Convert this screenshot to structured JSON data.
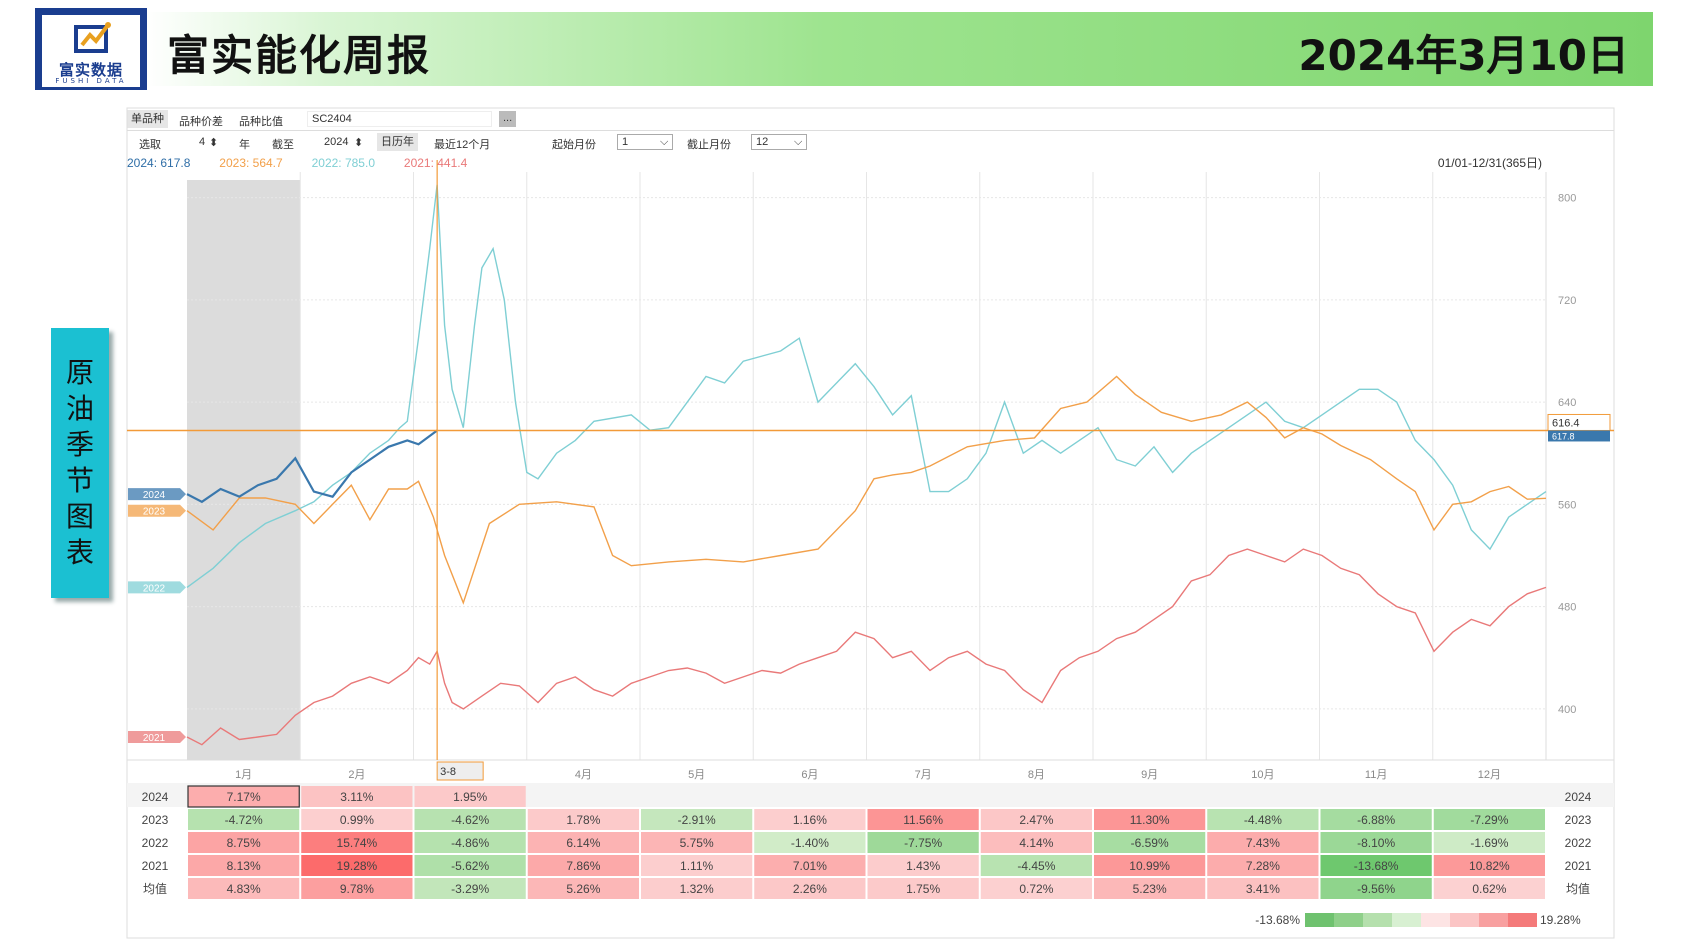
{
  "header": {
    "title": "富实能化周报",
    "date": "2024年3月10日",
    "logo_text": "富实数据",
    "logo_sub": "FUSHI DATA"
  },
  "side_label": "原油季节图表",
  "toolbar": {
    "tabs": [
      "单品种",
      "品种价差",
      "品种比值"
    ],
    "contract": "SC2404",
    "more_button": "...",
    "select_label": "选取",
    "select_value": "4",
    "year_label": "年",
    "until_label": "截至",
    "until_value": "2024",
    "calendar_year": "日历年",
    "recent_12": "最近12个月",
    "start_month_label": "起始月份",
    "start_month_value": "1",
    "end_month_label": "截止月份",
    "end_month_value": "12"
  },
  "legend_top": [
    {
      "text": "2024: 617.8",
      "color": "#2f6ea7"
    },
    {
      "text": "2023: 564.7",
      "color": "#f2a04a"
    },
    {
      "text": "2022: 785.0",
      "color": "#7fcfd4"
    },
    {
      "text": "2021: 441.4",
      "color": "#e97979"
    }
  ],
  "range_label": "01/01-12/31(365日)",
  "price_marker": "616.4",
  "price_marker_2": "617.8",
  "cursor_label": "3-8",
  "table": {
    "years": [
      "2024",
      "2023",
      "2022",
      "2021",
      "均值"
    ],
    "rows": [
      [
        "7.17%",
        "3.11%",
        "1.95%",
        "",
        "",
        "",
        "",
        "",
        "",
        "",
        "",
        ""
      ],
      [
        "-4.72%",
        "0.99%",
        "-4.62%",
        "1.78%",
        "-2.91%",
        "1.16%",
        "11.56%",
        "2.47%",
        "11.30%",
        "-4.48%",
        "-6.88%",
        "-7.29%"
      ],
      [
        "8.75%",
        "15.74%",
        "-4.86%",
        "6.14%",
        "5.75%",
        "-1.40%",
        "-7.75%",
        "4.14%",
        "-6.59%",
        "7.43%",
        "-8.10%",
        "-1.69%"
      ],
      [
        "8.13%",
        "19.28%",
        "-5.62%",
        "7.86%",
        "1.11%",
        "7.01%",
        "1.43%",
        "-4.45%",
        "10.99%",
        "7.28%",
        "-13.68%",
        "10.82%"
      ],
      [
        "4.83%",
        "9.78%",
        "-3.29%",
        "5.26%",
        "1.32%",
        "2.26%",
        "1.75%",
        "0.72%",
        "5.23%",
        "3.41%",
        "-9.56%",
        "0.62%"
      ]
    ],
    "scale_min": "-13.68%",
    "scale_max": "19.28%"
  },
  "chart_data": {
    "type": "line",
    "x_categories": [
      "1月",
      "2月",
      "3月",
      "4月",
      "5月",
      "6月",
      "7月",
      "8月",
      "9月",
      "10月",
      "11月",
      "12月"
    ],
    "ylim": [
      360,
      820
    ],
    "yticks": [
      400,
      480,
      560,
      640,
      720,
      800
    ],
    "x_domain_days": [
      1,
      365
    ],
    "series": [
      {
        "name": "2024",
        "color": "#3a78ad",
        "x": [
          1,
          5,
          10,
          15,
          20,
          25,
          30,
          35,
          40,
          45,
          50,
          55,
          60,
          63,
          68
        ],
        "y": [
          568,
          562,
          572,
          566,
          575,
          580,
          596,
          570,
          566,
          585,
          595,
          605,
          610,
          607,
          617.8
        ]
      },
      {
        "name": "2023",
        "color": "#f2a04a",
        "x": [
          1,
          8,
          15,
          22,
          30,
          35,
          40,
          45,
          50,
          55,
          60,
          63,
          67,
          70,
          75,
          82,
          90,
          100,
          110,
          115,
          120,
          130,
          140,
          150,
          160,
          170,
          180,
          185,
          190,
          195,
          200,
          210,
          220,
          228,
          235,
          242,
          250,
          255,
          262,
          270,
          278,
          285,
          290,
          295,
          300,
          305,
          310,
          318,
          325,
          330,
          335,
          340,
          345,
          350,
          355,
          360,
          365
        ],
        "y": [
          555,
          540,
          565,
          565,
          560,
          545,
          560,
          575,
          548,
          572,
          572,
          578,
          550,
          520,
          483,
          545,
          560,
          562,
          558,
          520,
          512,
          515,
          517,
          515,
          520,
          525,
          555,
          580,
          583,
          585,
          590,
          605,
          610,
          612,
          635,
          640,
          660,
          646,
          632,
          625,
          630,
          640,
          628,
          612,
          620,
          615,
          606,
          595,
          580,
          570,
          540,
          560,
          562,
          570,
          574,
          564,
          564.7
        ]
      },
      {
        "name": "2022",
        "color": "#7fcfd4",
        "x": [
          1,
          8,
          15,
          22,
          30,
          35,
          40,
          45,
          50,
          55,
          58,
          60,
          63,
          66,
          68,
          70,
          72,
          75,
          78,
          80,
          83,
          86,
          89,
          92,
          95,
          100,
          105,
          110,
          120,
          125,
          130,
          140,
          145,
          150,
          160,
          165,
          170,
          180,
          185,
          190,
          195,
          200,
          205,
          210,
          215,
          220,
          225,
          230,
          235,
          240,
          245,
          250,
          255,
          260,
          265,
          270,
          275,
          280,
          285,
          290,
          295,
          300,
          305,
          310,
          315,
          320,
          325,
          330,
          335,
          340,
          345,
          350,
          355,
          360,
          365
        ],
        "y": [
          495,
          510,
          530,
          545,
          555,
          562,
          575,
          585,
          600,
          610,
          620,
          625,
          690,
          760,
          810,
          700,
          650,
          620,
          700,
          745,
          760,
          720,
          640,
          585,
          580,
          600,
          610,
          625,
          630,
          618,
          620,
          660,
          655,
          672,
          680,
          690,
          640,
          670,
          652,
          630,
          645,
          570,
          570,
          580,
          600,
          640,
          600,
          610,
          600,
          610,
          620,
          595,
          590,
          605,
          585,
          600,
          610,
          620,
          630,
          640,
          625,
          620,
          630,
          640,
          650,
          650,
          640,
          610,
          595,
          575,
          540,
          525,
          550,
          560,
          570
        ]
      },
      {
        "name": "2021",
        "color": "#e97979",
        "x": [
          1,
          5,
          10,
          15,
          20,
          25,
          30,
          35,
          40,
          45,
          50,
          55,
          60,
          63,
          66,
          68,
          70,
          72,
          75,
          80,
          85,
          90,
          95,
          100,
          105,
          110,
          115,
          120,
          125,
          130,
          135,
          140,
          145,
          150,
          155,
          160,
          165,
          170,
          175,
          180,
          185,
          190,
          195,
          200,
          205,
          210,
          215,
          220,
          225,
          230,
          235,
          240,
          245,
          250,
          255,
          260,
          265,
          270,
          275,
          280,
          285,
          290,
          295,
          300,
          305,
          310,
          315,
          320,
          325,
          330,
          335,
          340,
          345,
          350,
          355,
          360,
          365
        ],
        "y": [
          378,
          372,
          385,
          376,
          378,
          380,
          395,
          405,
          410,
          420,
          425,
          420,
          430,
          440,
          435,
          445,
          420,
          405,
          400,
          410,
          420,
          418,
          405,
          420,
          425,
          415,
          410,
          420,
          425,
          430,
          432,
          428,
          420,
          425,
          430,
          428,
          435,
          440,
          445,
          460,
          455,
          440,
          445,
          430,
          440,
          445,
          435,
          430,
          415,
          405,
          430,
          440,
          445,
          455,
          460,
          470,
          480,
          500,
          505,
          520,
          525,
          520,
          515,
          525,
          520,
          510,
          505,
          490,
          480,
          475,
          445,
          460,
          470,
          465,
          480,
          490,
          495
        ]
      }
    ]
  }
}
